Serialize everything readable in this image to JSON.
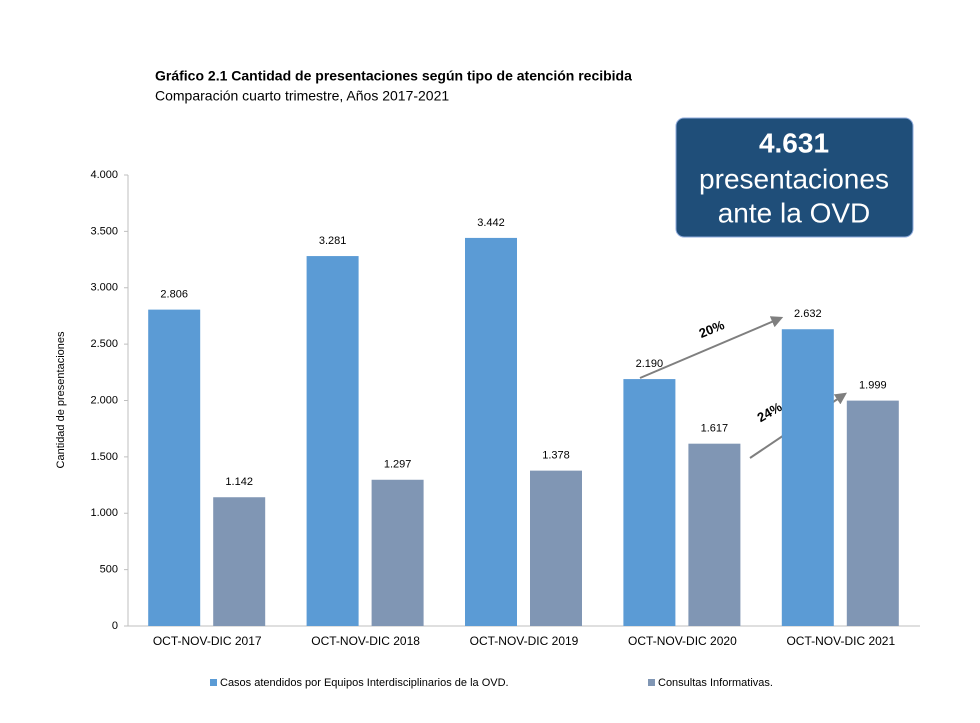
{
  "chart_data": {
    "type": "bar",
    "title": "Gráfico 2.1 Cantidad de presentaciones según tipo de atención recibida",
    "subtitle": "Comparación cuarto trimestre, Años 2017-2021",
    "y_label": "Cantidad de presentaciones",
    "categories": [
      "OCT-NOV-DIC 2017",
      "OCT-NOV-DIC 2018",
      "OCT-NOV-DIC 2019",
      "OCT-NOV-DIC 2020",
      "OCT-NOV-DIC 2021"
    ],
    "series": [
      {
        "name": "Casos atendidos por Equipos Interdisciplinarios de la OVD.",
        "color": "#5b9bd5",
        "values": [
          2806,
          3281,
          3442,
          2190,
          2632
        ],
        "value_labels": [
          "2.806",
          "3.281",
          "3.442",
          "2.190",
          "2.632"
        ]
      },
      {
        "name": "Consultas Informativas.",
        "color": "#8096b4",
        "values": [
          1142,
          1297,
          1378,
          1617,
          1999
        ],
        "value_labels": [
          "1.142",
          "1.297",
          "1.378",
          "1.617",
          "1.999"
        ]
      }
    ],
    "ylim": [
      0,
      4000
    ],
    "yticks": [
      0,
      500,
      {
        "value": 1000,
        "label": "1.000"
      },
      {
        "value": 1500,
        "label": "1.500"
      },
      {
        "value": 2000,
        "label": "2.000"
      },
      {
        "value": 2500,
        "label": "2.500"
      },
      {
        "value": 3000,
        "label": "3.000"
      },
      {
        "value": 3500,
        "label": "3.500"
      },
      {
        "value": 4000,
        "label": "4.000"
      }
    ],
    "annotations": [
      "20%",
      "24%"
    ],
    "callout": [
      "4.631",
      "presentaciones",
      "ante la OVD"
    ]
  }
}
